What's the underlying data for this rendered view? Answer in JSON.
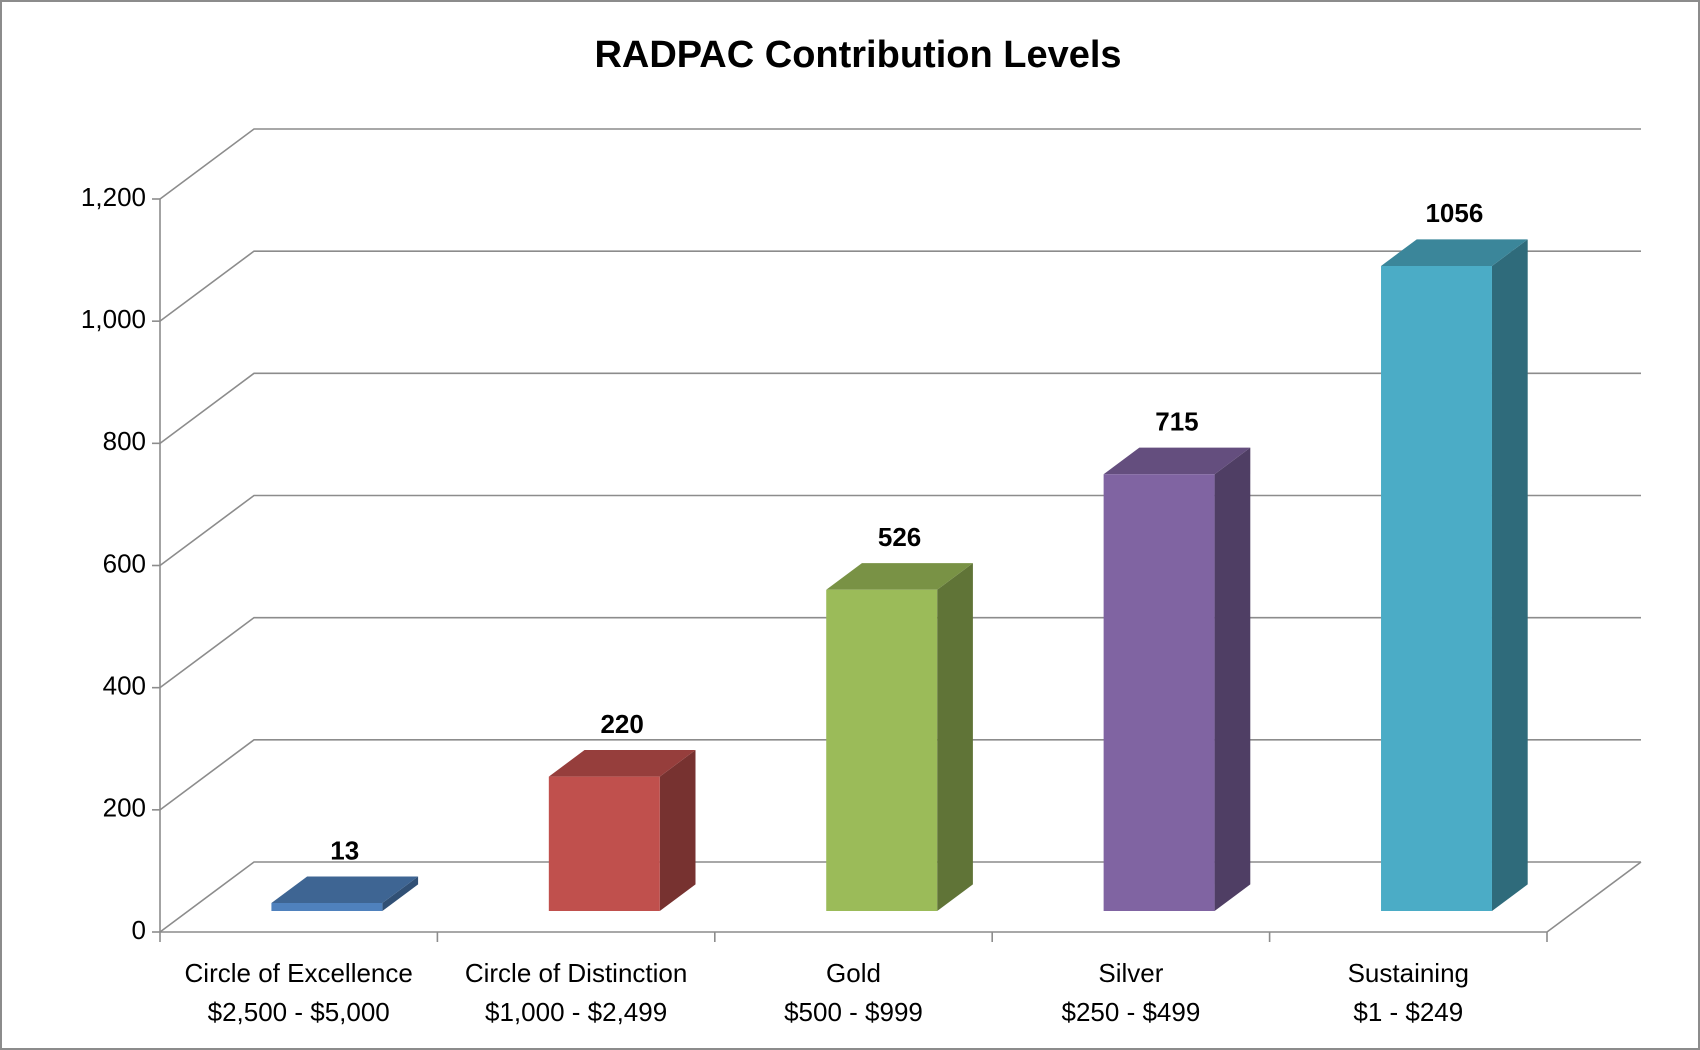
{
  "chart_data": {
    "type": "bar3d",
    "title": "RADPAC Contribution Levels",
    "categories": [
      [
        "Circle of Excellence",
        "$2,500 - $5,000"
      ],
      [
        "Circle of Distinction",
        "$1,000 - $2,499"
      ],
      [
        "Gold",
        "$500 - $999"
      ],
      [
        "Silver",
        "$250 - $499"
      ],
      [
        "Sustaining",
        "$1 - $249"
      ]
    ],
    "values": [
      13,
      220,
      526,
      715,
      1056
    ],
    "colors": [
      "#4f81bd",
      "#c0504d",
      "#9bbb59",
      "#8064a2",
      "#4bacc6"
    ],
    "ylim": [
      0,
      1200
    ],
    "yticks": [
      0,
      200,
      400,
      600,
      800,
      {
        "value": 1000,
        "label": "1,000"
      },
      {
        "value": 1200,
        "label": "1,200"
      }
    ],
    "grid": true
  }
}
